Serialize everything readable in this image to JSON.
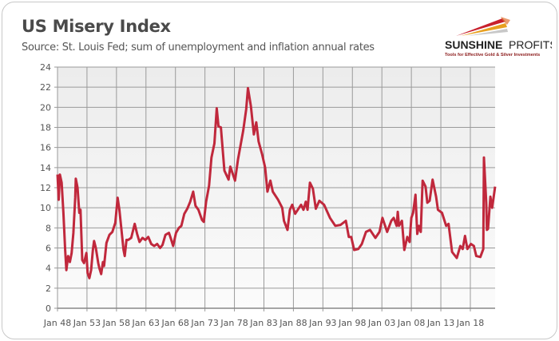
{
  "chart_data": {
    "type": "line",
    "title": "US Misery Index",
    "subtitle": "Source: St. Louis Fed; sum of unemployment and inflation annual rates",
    "xlabel": "",
    "ylabel": "",
    "ylim": [
      0,
      24
    ],
    "xlim": [
      1948,
      2022.2
    ],
    "yticks": [
      "0",
      "2",
      "4",
      "6",
      "8",
      "10",
      "12",
      "14",
      "16",
      "18",
      "20",
      "22",
      "24"
    ],
    "xticks": [
      "Jan 48",
      "Jan 53",
      "Jan 58",
      "Jan 63",
      "Jan 68",
      "Jan 73",
      "Jan 78",
      "Jan 83",
      "Jan 88",
      "Jan 93",
      "Jan 98",
      "Jan 03",
      "Jan 08",
      "Jan 13",
      "Jan 18"
    ],
    "grid": true,
    "series": [
      {
        "name": "US Misery Index",
        "color": "#c0283c",
        "x": [
          1948.0,
          1948.2,
          1948.4,
          1948.7,
          1949.0,
          1949.3,
          1949.5,
          1949.8,
          1950.1,
          1950.4,
          1950.7,
          1951.0,
          1951.1,
          1951.4,
          1951.7,
          1951.9,
          1952.2,
          1952.5,
          1952.9,
          1953.1,
          1953.4,
          1953.7,
          1954.0,
          1954.2,
          1954.5,
          1954.9,
          1955.1,
          1955.4,
          1955.7,
          1955.9,
          1956.3,
          1956.8,
          1957.3,
          1957.8,
          1958.2,
          1958.5,
          1958.9,
          1959.2,
          1959.4,
          1959.7,
          1960.0,
          1960.5,
          1961.1,
          1961.5,
          1961.9,
          1962.4,
          1962.9,
          1963.4,
          1963.9,
          1964.4,
          1964.9,
          1965.4,
          1965.8,
          1966.3,
          1966.9,
          1967.3,
          1967.6,
          1968.1,
          1968.6,
          1969.0,
          1969.5,
          1970.0,
          1970.5,
          1971.0,
          1971.4,
          1971.9,
          1972.5,
          1972.8,
          1973.2,
          1973.7,
          1974.1,
          1974.6,
          1975.0,
          1975.3,
          1975.7,
          1976.3,
          1977.0,
          1977.3,
          1978.1,
          1978.6,
          1979.5,
          1980.0,
          1980.3,
          1980.8,
          1981.3,
          1981.7,
          1982.1,
          1982.7,
          1983.2,
          1983.6,
          1984.1,
          1984.5,
          1985.4,
          1986.1,
          1986.4,
          1987.0,
          1987.4,
          1987.8,
          1988.3,
          1989.3,
          1989.7,
          1990.1,
          1990.4,
          1990.8,
          1991.3,
          1991.8,
          1992.4,
          1993.2,
          1994.2,
          1995.1,
          1996.0,
          1996.9,
          1997.4,
          1997.8,
          1998.3,
          1999.0,
          1999.6,
          2000.3,
          2001.0,
          2001.9,
          2002.6,
          2003.1,
          2003.9,
          2004.6,
          2005.0,
          2005.5,
          2005.7,
          2005.9,
          2006.4,
          2006.8,
          2007.3,
          2007.7,
          2008.0,
          2008.3,
          2008.7,
          2009.0,
          2009.3,
          2009.6,
          2009.9,
          2010.4,
          2010.7,
          2011.1,
          2011.6,
          2012.2,
          2012.5,
          2013.2,
          2013.9,
          2014.3,
          2014.9,
          2015.7,
          2016.3,
          2016.7,
          2017.1,
          2017.5,
          2018.1,
          2018.6,
          2019.0,
          2019.7,
          2020.2,
          2020.3,
          2020.7,
          2020.8,
          2021.0,
          2021.4,
          2021.7,
          2022.2
        ],
        "y": [
          13.3,
          10.8,
          13.3,
          12.5,
          9.5,
          5.8,
          3.8,
          5.2,
          4.6,
          5.5,
          7.5,
          11.0,
          12.9,
          12.0,
          9.5,
          9.8,
          4.8,
          4.5,
          5.5,
          3.5,
          3.0,
          3.8,
          5.8,
          6.7,
          6.0,
          4.5,
          4.0,
          3.4,
          4.6,
          4.2,
          6.5,
          7.3,
          7.6,
          8.5,
          11.0,
          9.8,
          7.5,
          5.8,
          5.2,
          6.8,
          6.8,
          7.0,
          8.4,
          7.4,
          6.6,
          7.0,
          6.8,
          7.1,
          6.4,
          6.2,
          6.4,
          6.0,
          6.3,
          7.3,
          7.5,
          6.8,
          6.2,
          7.5,
          8.0,
          8.2,
          9.4,
          9.9,
          10.6,
          11.6,
          10.2,
          9.8,
          8.8,
          8.6,
          10.6,
          12.2,
          15.0,
          16.4,
          19.9,
          18.1,
          18.0,
          13.7,
          12.8,
          14.1,
          12.7,
          14.8,
          17.7,
          19.8,
          21.9,
          20.1,
          17.3,
          18.5,
          16.6,
          15.3,
          14.0,
          11.6,
          12.7,
          11.6,
          10.8,
          10.0,
          8.7,
          7.8,
          9.8,
          10.3,
          9.4,
          10.3,
          9.8,
          10.6,
          9.8,
          12.5,
          11.9,
          9.9,
          10.7,
          10.3,
          9.0,
          8.2,
          8.3,
          8.7,
          7.1,
          7.1,
          5.8,
          5.9,
          6.4,
          7.6,
          7.8,
          7.0,
          7.6,
          9.0,
          7.6,
          8.7,
          9.0,
          8.2,
          9.6,
          8.2,
          8.7,
          5.8,
          7.1,
          6.6,
          9.0,
          9.5,
          11.3,
          7.4,
          8.2,
          7.6,
          12.7,
          12.1,
          10.5,
          10.7,
          12.8,
          11.1,
          9.8,
          9.5,
          8.2,
          8.4,
          5.6,
          5.0,
          6.2,
          5.9,
          7.2,
          5.9,
          6.4,
          6.2,
          5.2,
          5.1,
          5.9,
          15.0,
          10.5,
          7.8,
          7.9,
          11.1,
          10.0,
          12.1
        ]
      }
    ]
  },
  "logo": {
    "name": "SUNSHINE PROFITS",
    "tagline": "Tools for Effective Gold & Silver Investments"
  },
  "colors": {
    "line": "#c0283c",
    "grid": "#9a9a9a",
    "plot_bg": "#f2f2f2"
  }
}
